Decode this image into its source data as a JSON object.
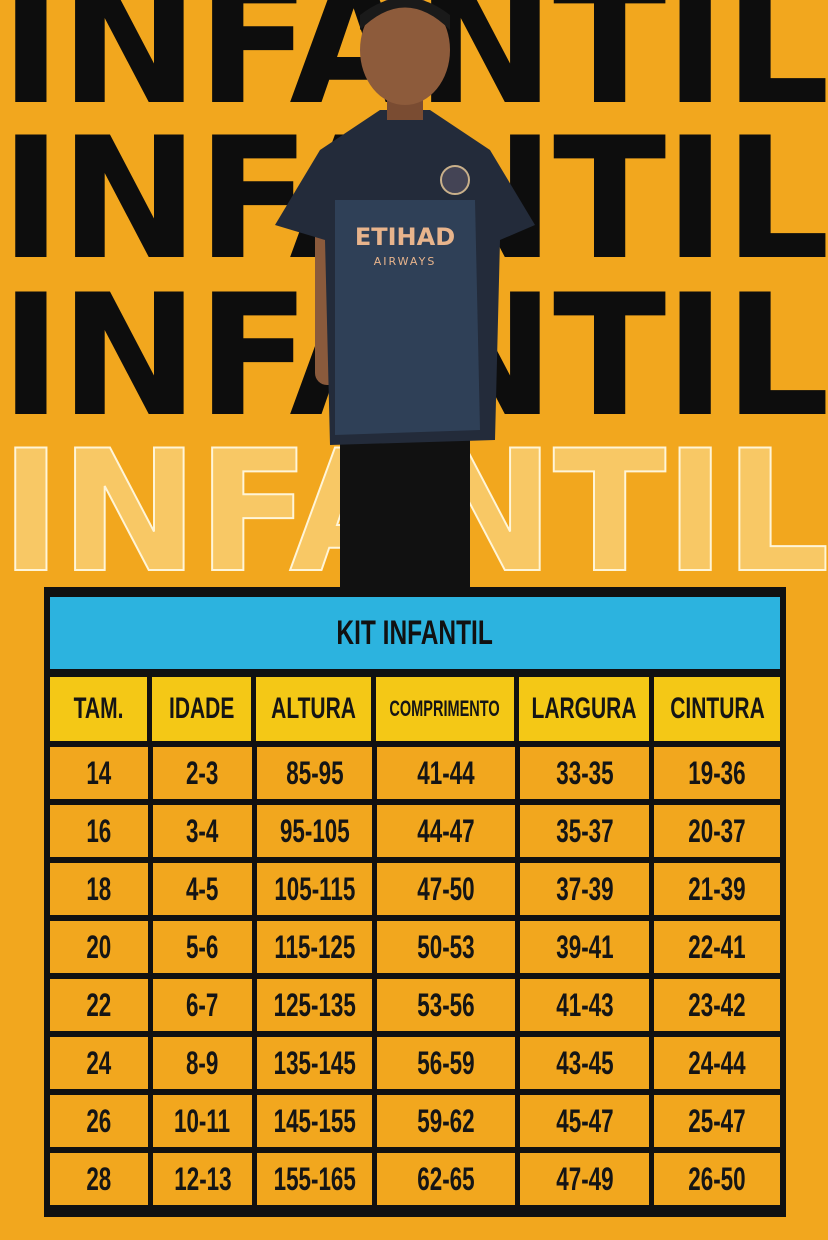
{
  "background_words": [
    "INFANTIL",
    "INFANTIL",
    "INFANTIL",
    "INFANTIL"
  ],
  "shirt_logo": {
    "brand": "ETIHAD",
    "sub": "AIRWAYS"
  },
  "colors": {
    "background": "#F2A71E",
    "title_bar": "#2CB3DF",
    "header": "#F4C816",
    "border": "#111111"
  },
  "table": {
    "title": "KIT INFANTIL",
    "headers": [
      "TAM.",
      "IDADE",
      "ALTURA",
      "COMPRIMENTO",
      "LARGURA",
      "CINTURA"
    ],
    "rows": [
      [
        "14",
        "2-3",
        "85-95",
        "41-44",
        "33-35",
        "19-36"
      ],
      [
        "16",
        "3-4",
        "95-105",
        "44-47",
        "35-37",
        "20-37"
      ],
      [
        "18",
        "4-5",
        "105-115",
        "47-50",
        "37-39",
        "21-39"
      ],
      [
        "20",
        "5-6",
        "115-125",
        "50-53",
        "39-41",
        "22-41"
      ],
      [
        "22",
        "6-7",
        "125-135",
        "53-56",
        "41-43",
        "23-42"
      ],
      [
        "24",
        "8-9",
        "135-145",
        "56-59",
        "43-45",
        "24-44"
      ],
      [
        "26",
        "10-11",
        "145-155",
        "59-62",
        "45-47",
        "25-47"
      ],
      [
        "28",
        "12-13",
        "155-165",
        "62-65",
        "47-49",
        "26-50"
      ]
    ]
  }
}
